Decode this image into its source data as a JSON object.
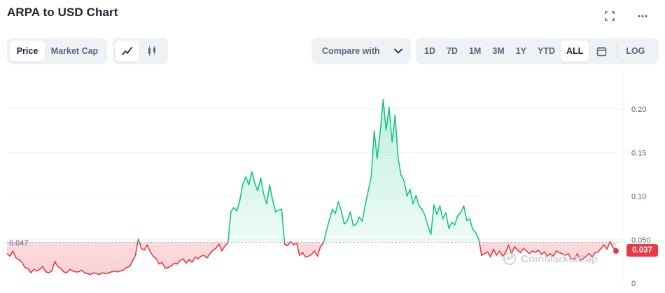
{
  "header": {
    "title": "ARPA to USD Chart"
  },
  "icons": {
    "fullscreen": "fullscreen-icon",
    "more": "more-icon",
    "calendar": "calendar-icon",
    "line": "line-chart-icon",
    "candle": "candlestick-icon",
    "chevron": "chevron-down-icon"
  },
  "toggle": {
    "price": "Price",
    "market_cap": "Market Cap"
  },
  "compare": {
    "label": "Compare with"
  },
  "ranges": [
    "1D",
    "7D",
    "1M",
    "3M",
    "1Y",
    "YTD",
    "ALL"
  ],
  "active_range": "ALL",
  "log_label": "LOG",
  "current_price_label": "0.037",
  "open_price_label": "0.047",
  "watermark": "CoinMarketCap",
  "colors": {
    "up": "#16c784",
    "down": "#ea3943",
    "grid": "#eff2f5",
    "text": "#58667e"
  },
  "chart_data": {
    "type": "area",
    "title": "ARPA to USD Chart",
    "ylim": [
      0,
      0.235
    ],
    "yticks": [
      0,
      0.05,
      0.1,
      0.15,
      0.2
    ],
    "ytick_labels": [
      "0",
      "0.050",
      "0.10",
      "0.15",
      "0.20"
    ],
    "baseline": 0.047,
    "last_value": 0.037,
    "grid": true,
    "series": [
      {
        "values": [
          0.034,
          0.031,
          0.037,
          0.029,
          0.027,
          0.024,
          0.018,
          0.017,
          0.012,
          0.016,
          0.014,
          0.016,
          0.019,
          0.013,
          0.012,
          0.014,
          0.025,
          0.019,
          0.017,
          0.013,
          0.012,
          0.016,
          0.014,
          0.013,
          0.013,
          0.015,
          0.012,
          0.011,
          0.01,
          0.012,
          0.011,
          0.01,
          0.012,
          0.011,
          0.012,
          0.013,
          0.014,
          0.013,
          0.014,
          0.015,
          0.018,
          0.019,
          0.025,
          0.032,
          0.051,
          0.04,
          0.038,
          0.044,
          0.036,
          0.031,
          0.028,
          0.022,
          0.024,
          0.017,
          0.018,
          0.02,
          0.023,
          0.022,
          0.026,
          0.028,
          0.023,
          0.027,
          0.024,
          0.03,
          0.028,
          0.031,
          0.032,
          0.029,
          0.034,
          0.038,
          0.04,
          0.045,
          0.037,
          0.043,
          0.046,
          0.082,
          0.087,
          0.083,
          0.095,
          0.114,
          0.122,
          0.113,
          0.128,
          0.115,
          0.106,
          0.121,
          0.102,
          0.091,
          0.113,
          0.095,
          0.082,
          0.084,
          0.085,
          0.045,
          0.043,
          0.048,
          0.044,
          0.046,
          0.032,
          0.035,
          0.03,
          0.031,
          0.033,
          0.037,
          0.031,
          0.042,
          0.046,
          0.06,
          0.073,
          0.085,
          0.08,
          0.094,
          0.083,
          0.068,
          0.072,
          0.082,
          0.066,
          0.068,
          0.076,
          0.071,
          0.09,
          0.106,
          0.122,
          0.175,
          0.143,
          0.174,
          0.211,
          0.176,
          0.202,
          0.162,
          0.193,
          0.144,
          0.124,
          0.118,
          0.1,
          0.108,
          0.091,
          0.101,
          0.089,
          0.085,
          0.078,
          0.066,
          0.056,
          0.09,
          0.079,
          0.089,
          0.074,
          0.081,
          0.063,
          0.07,
          0.067,
          0.078,
          0.081,
          0.089,
          0.072,
          0.074,
          0.062,
          0.058,
          0.051,
          0.032,
          0.034,
          0.036,
          0.03,
          0.039,
          0.032,
          0.037,
          0.031,
          0.035,
          0.044,
          0.034,
          0.042,
          0.038,
          0.035,
          0.04,
          0.037,
          0.034,
          0.037,
          0.035,
          0.038,
          0.033,
          0.036,
          0.031,
          0.034,
          0.031,
          0.037,
          0.035,
          0.034,
          0.032,
          0.034,
          0.028,
          0.027,
          0.034,
          0.026,
          0.028,
          0.031,
          0.034,
          0.03,
          0.035,
          0.036,
          0.04,
          0.044,
          0.039,
          0.048,
          0.041,
          0.037
        ]
      }
    ]
  }
}
